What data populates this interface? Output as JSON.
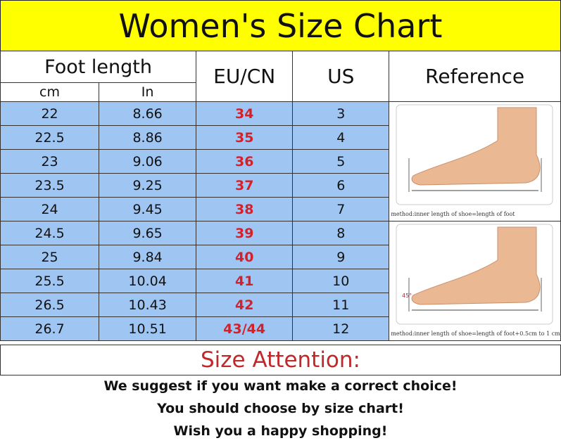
{
  "title": "Women's Size Chart",
  "headers": {
    "foot_length": "Foot length",
    "cm": "cm",
    "in": "In",
    "eu_cn": "EU/CN",
    "us": "US",
    "reference": "Reference"
  },
  "rows": [
    {
      "cm": "22",
      "in": "8.66",
      "eu": "34",
      "us": "3"
    },
    {
      "cm": "22.5",
      "in": "8.86",
      "eu": "35",
      "us": "4"
    },
    {
      "cm": "23",
      "in": "9.06",
      "eu": "36",
      "us": "5"
    },
    {
      "cm": "23.5",
      "in": "9.25",
      "eu": "37",
      "us": "6"
    },
    {
      "cm": "24",
      "in": "9.45",
      "eu": "38",
      "us": "7"
    },
    {
      "cm": "24.5",
      "in": "9.65",
      "eu": "39",
      "us": "8"
    },
    {
      "cm": "25",
      "in": "9.84",
      "eu": "40",
      "us": "9"
    },
    {
      "cm": "25.5",
      "in": "10.04",
      "eu": "41",
      "us": "10"
    },
    {
      "cm": "26.5",
      "in": "10.43",
      "eu": "42",
      "us": "11"
    },
    {
      "cm": "26.7",
      "in": "10.51",
      "eu": "43/44",
      "us": "12"
    }
  ],
  "reference": {
    "caption1": "method:inner length of shoe=length of foot",
    "caption2": "method:inner length of shoe=length of foot+0.5cm to 1 cm",
    "angle": "45°"
  },
  "attention": {
    "title": "Size Attention:",
    "lines": [
      "We suggest if you want make a correct choice!",
      "You should choose by size chart!",
      "Wish you a happy shopping!"
    ]
  },
  "colors": {
    "title_bg": "#ffff00",
    "row_bg": "#9fc6f2",
    "eu_text": "#d5202a",
    "attention_text": "#c0282a"
  }
}
